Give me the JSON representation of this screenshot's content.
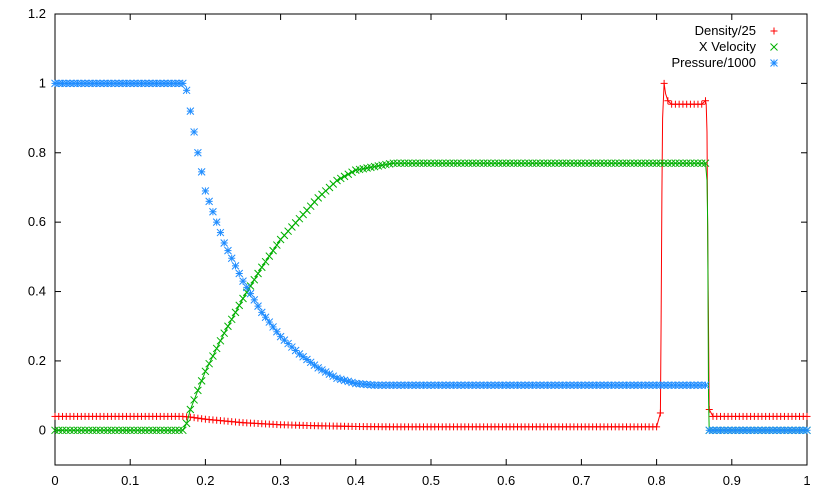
{
  "chart_data": {
    "type": "scatter",
    "title": "",
    "xlabel": "",
    "ylabel": "",
    "xlim": [
      0,
      1
    ],
    "ylim": [
      -0.1,
      1.2
    ],
    "x_ticks": [
      0,
      0.1,
      0.2,
      0.3,
      0.4,
      0.5,
      0.6,
      0.7,
      0.8,
      0.9,
      1
    ],
    "x_tick_labels": [
      "0",
      "0.1",
      "0.2",
      "0.3",
      "0.4",
      "0.5",
      "0.6",
      "0.7",
      "0.8",
      "0.9",
      "1"
    ],
    "y_ticks": [
      0,
      0.2,
      0.4,
      0.6,
      0.8,
      1,
      1.2
    ],
    "y_tick_labels": [
      "0",
      "0.2",
      "0.4",
      "0.6",
      "0.8",
      "1",
      "1.2"
    ],
    "grid": false,
    "legend_position": "top-right",
    "series": [
      {
        "name": "Density/25",
        "color": "#ff0000",
        "marker": "plus",
        "connect_line": true,
        "x": [
          0,
          0.05,
          0.1,
          0.15,
          0.17,
          0.18,
          0.2,
          0.25,
          0.3,
          0.35,
          0.4,
          0.45,
          0.5,
          0.6,
          0.7,
          0.8,
          0.805,
          0.806,
          0.807,
          0.808,
          0.81,
          0.812,
          0.815,
          0.82,
          0.83,
          0.84,
          0.85,
          0.86,
          0.865,
          0.866,
          0.867,
          0.868,
          0.869,
          0.87,
          0.875,
          0.9,
          0.95,
          1
        ],
        "y": [
          0.04,
          0.04,
          0.04,
          0.04,
          0.04,
          0.038,
          0.032,
          0.022,
          0.016,
          0.013,
          0.011,
          0.01,
          0.01,
          0.01,
          0.01,
          0.01,
          0.05,
          0.31,
          0.68,
          0.9,
          1.0,
          0.97,
          0.95,
          0.94,
          0.94,
          0.94,
          0.94,
          0.94,
          0.95,
          0.94,
          0.86,
          0.56,
          0.3,
          0.06,
          0.04,
          0.04,
          0.04,
          0.04
        ]
      },
      {
        "name": "X Velocity",
        "color": "#00b000",
        "marker": "cross",
        "connect_line": true,
        "x": [
          0,
          0.05,
          0.1,
          0.15,
          0.17,
          0.175,
          0.18,
          0.2,
          0.225,
          0.25,
          0.275,
          0.3,
          0.325,
          0.35,
          0.375,
          0.4,
          0.425,
          0.45,
          0.5,
          0.6,
          0.7,
          0.8,
          0.85,
          0.865,
          0.867,
          0.868,
          0.869,
          0.87,
          0.875,
          0.9,
          0.95,
          1
        ],
        "y": [
          0,
          0,
          0,
          0,
          0,
          0.02,
          0.06,
          0.17,
          0.28,
          0.38,
          0.47,
          0.55,
          0.61,
          0.67,
          0.72,
          0.75,
          0.76,
          0.77,
          0.77,
          0.77,
          0.77,
          0.77,
          0.77,
          0.77,
          0.72,
          0.59,
          0.1,
          0,
          0,
          0,
          0,
          0
        ]
      },
      {
        "name": "Pressure/1000",
        "color": "#1e8cff",
        "marker": "star",
        "connect_line": false,
        "x": [
          0,
          0.05,
          0.1,
          0.15,
          0.17,
          0.175,
          0.18,
          0.19,
          0.2,
          0.225,
          0.25,
          0.275,
          0.3,
          0.325,
          0.35,
          0.375,
          0.4,
          0.425,
          0.45,
          0.5,
          0.6,
          0.7,
          0.8,
          0.85,
          0.865,
          0.867,
          0.868,
          0.869,
          0.87,
          0.875,
          0.9,
          0.95,
          1
        ],
        "y": [
          1,
          1,
          1,
          1,
          1,
          0.98,
          0.92,
          0.8,
          0.69,
          0.54,
          0.43,
          0.34,
          0.27,
          0.22,
          0.18,
          0.15,
          0.135,
          0.13,
          0.13,
          0.13,
          0.13,
          0.13,
          0.13,
          0.13,
          0.13,
          0.12,
          0.06,
          0.01,
          0,
          0,
          0,
          0,
          0
        ]
      }
    ]
  }
}
